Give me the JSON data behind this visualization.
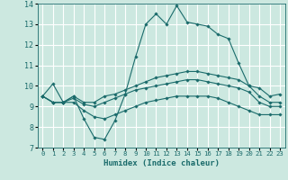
{
  "xlabel": "Humidex (Indice chaleur)",
  "background_color": "#cce8e0",
  "grid_color": "#ffffff",
  "line_color": "#1a6b6b",
  "xlim": [
    -0.5,
    23.5
  ],
  "ylim": [
    7,
    14
  ],
  "yticks": [
    7,
    8,
    9,
    10,
    11,
    12,
    13,
    14
  ],
  "xticks": [
    0,
    1,
    2,
    3,
    4,
    5,
    6,
    7,
    8,
    9,
    10,
    11,
    12,
    13,
    14,
    15,
    16,
    17,
    18,
    19,
    20,
    21,
    22,
    23
  ],
  "series": [
    [
      9.5,
      10.1,
      9.2,
      9.5,
      8.4,
      7.5,
      7.4,
      8.3,
      9.6,
      11.4,
      13.0,
      13.5,
      13.0,
      13.9,
      13.1,
      13.0,
      12.9,
      12.5,
      12.3,
      11.1,
      10.0,
      9.9,
      9.5,
      9.6
    ],
    [
      9.5,
      9.2,
      9.2,
      9.5,
      9.2,
      9.2,
      9.5,
      9.6,
      9.8,
      10.0,
      10.2,
      10.4,
      10.5,
      10.6,
      10.7,
      10.7,
      10.6,
      10.5,
      10.4,
      10.3,
      10.0,
      9.5,
      9.2,
      9.2
    ],
    [
      9.5,
      9.2,
      9.2,
      9.4,
      9.1,
      9.0,
      9.2,
      9.4,
      9.6,
      9.8,
      9.9,
      10.0,
      10.1,
      10.2,
      10.3,
      10.3,
      10.2,
      10.1,
      10.0,
      9.9,
      9.7,
      9.2,
      9.0,
      9.0
    ],
    [
      9.5,
      9.2,
      9.2,
      9.2,
      8.8,
      8.5,
      8.4,
      8.6,
      8.8,
      9.0,
      9.2,
      9.3,
      9.4,
      9.5,
      9.5,
      9.5,
      9.5,
      9.4,
      9.2,
      9.0,
      8.8,
      8.6,
      8.6,
      8.6
    ]
  ]
}
